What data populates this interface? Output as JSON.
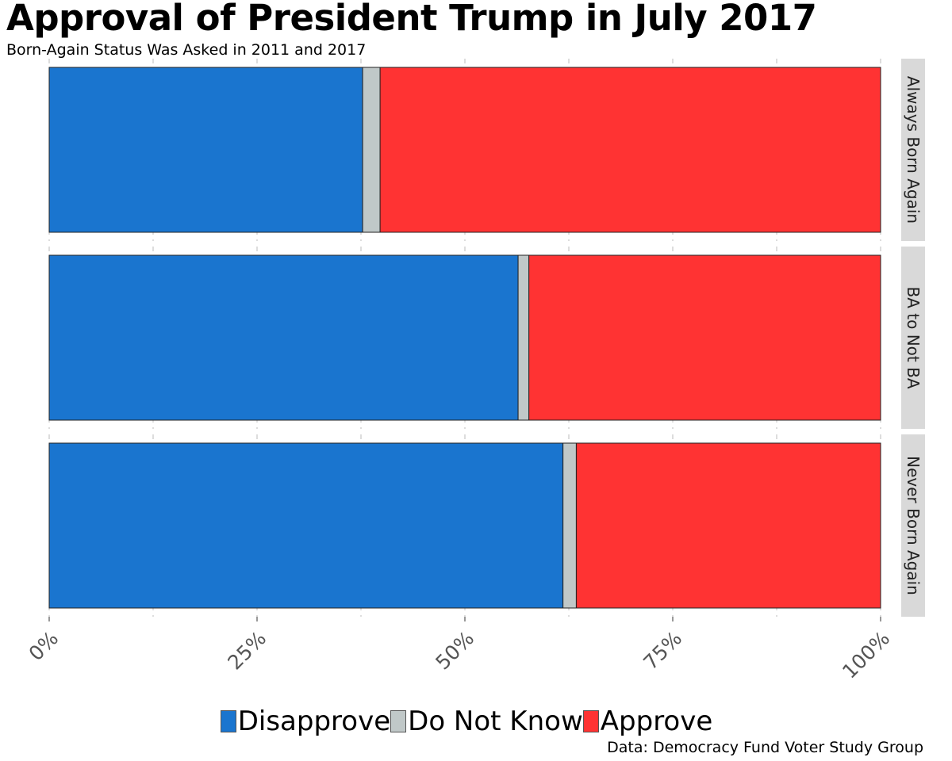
{
  "title": "Approval of President Trump in July 2017",
  "subtitle": "Born-Again Status Was Asked in 2011 and 2017",
  "source": "Data: Democracy Fund Voter Study Group",
  "colors": {
    "Disapprove": "#1a75cf",
    "Do Not Know": "#c0c8c8",
    "Approve": "#ff3333",
    "panel_strip": "#d9d9d9",
    "grid": "#bbbbbb"
  },
  "chart_data": {
    "type": "bar",
    "orientation": "horizontal",
    "stacked": true,
    "facets": [
      "Always Born Again",
      "BA to Not BA",
      "Never Born Again"
    ],
    "series": [
      {
        "name": "Disapprove",
        "values": [
          37.7,
          56.4,
          61.8
        ]
      },
      {
        "name": "Do Not Know",
        "values": [
          2.1,
          1.3,
          1.6
        ]
      },
      {
        "name": "Approve",
        "values": [
          60.2,
          42.3,
          36.6
        ]
      }
    ],
    "xlim": [
      0,
      100
    ],
    "x_ticks": [
      0,
      25,
      50,
      75,
      100
    ],
    "x_tick_labels": [
      "0%",
      "25%",
      "50%",
      "75%",
      "100%"
    ],
    "xlabel": "",
    "ylabel": "",
    "legend": {
      "position": "bottom",
      "entries": [
        "Disapprove",
        "Do Not Know",
        "Approve"
      ]
    },
    "grid": true
  }
}
